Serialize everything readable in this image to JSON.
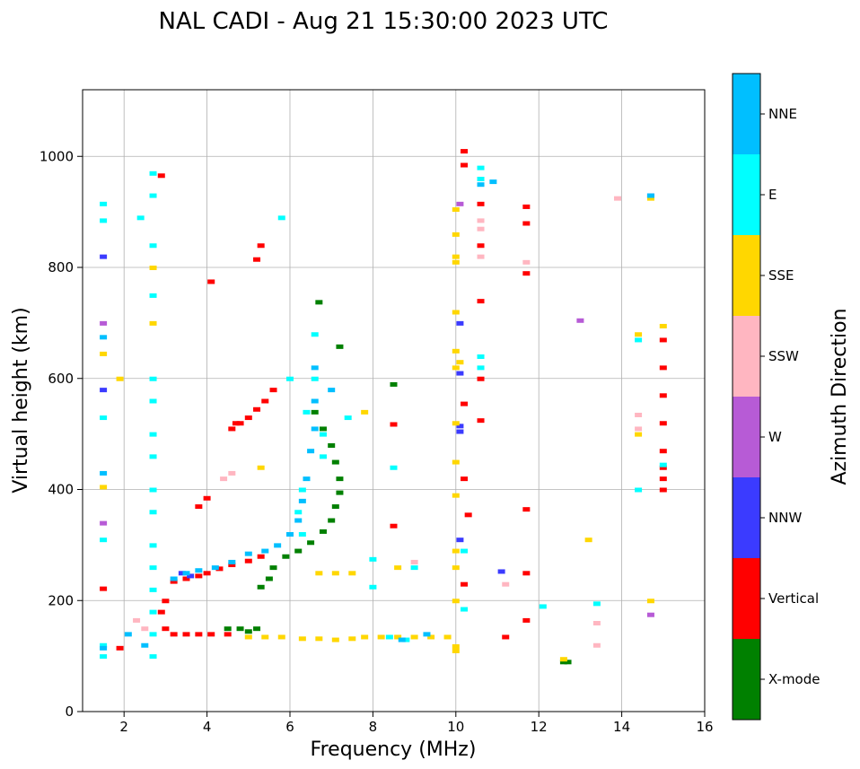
{
  "chart_data": {
    "type": "scatter",
    "title": "NAL CADI - Aug 21 15:30:00 2023 UTC",
    "xlabel": "Frequency (MHz)",
    "ylabel": "Virtual height (km)",
    "xlim": [
      1,
      16
    ],
    "ylim": [
      0,
      1120
    ],
    "xticks": [
      2,
      4,
      6,
      8,
      10,
      12,
      14,
      16
    ],
    "yticks": [
      0,
      200,
      400,
      600,
      800,
      1000
    ],
    "grid": true,
    "colorbar": {
      "label": "Azimuth Direction",
      "categories": [
        {
          "name": "X-mode",
          "color": "#008000"
        },
        {
          "name": "Vertical",
          "color": "#ff0000"
        },
        {
          "name": "NNW",
          "color": "#3b3bff"
        },
        {
          "name": "W",
          "color": "#b75bd6"
        },
        {
          "name": "SSW",
          "color": "#ffb6c1"
        },
        {
          "name": "SSE",
          "color": "#ffd700"
        },
        {
          "name": "E",
          "color": "#00ffff"
        },
        {
          "name": "NNE",
          "color": "#00bfff"
        }
      ]
    },
    "series": [
      {
        "name": "Vertical",
        "color": "#ff0000",
        "points": [
          [
            3.0,
            150
          ],
          [
            3.2,
            140
          ],
          [
            3.5,
            140
          ],
          [
            3.8,
            140
          ],
          [
            4.1,
            140
          ],
          [
            4.5,
            140
          ],
          [
            2.9,
            180
          ],
          [
            3.0,
            200
          ],
          [
            3.2,
            235
          ],
          [
            3.5,
            240
          ],
          [
            3.8,
            245
          ],
          [
            4.0,
            250
          ],
          [
            4.3,
            258
          ],
          [
            4.6,
            265
          ],
          [
            5.0,
            272
          ],
          [
            5.3,
            280
          ],
          [
            4.7,
            520
          ],
          [
            5.0,
            530
          ],
          [
            5.2,
            545
          ],
          [
            5.4,
            560
          ],
          [
            5.6,
            580
          ],
          [
            3.8,
            370
          ],
          [
            4.0,
            385
          ],
          [
            4.6,
            510
          ],
          [
            4.1,
            775
          ],
          [
            5.2,
            815
          ],
          [
            5.3,
            840
          ],
          [
            4.8,
            520
          ],
          [
            10.2,
            1010
          ],
          [
            10.2,
            985
          ],
          [
            10.6,
            915
          ],
          [
            10.6,
            840
          ],
          [
            10.6,
            740
          ],
          [
            10.6,
            600
          ],
          [
            10.6,
            525
          ],
          [
            10.2,
            555
          ],
          [
            10.2,
            420
          ],
          [
            10.3,
            355
          ],
          [
            10.2,
            230
          ],
          [
            11.7,
            910
          ],
          [
            11.7,
            880
          ],
          [
            11.7,
            790
          ],
          [
            11.7,
            365
          ],
          [
            11.7,
            250
          ],
          [
            11.7,
            165
          ],
          [
            8.5,
            335
          ],
          [
            8.5,
            518
          ],
          [
            1.5,
            222
          ],
          [
            1.9,
            115
          ],
          [
            15.0,
            420
          ],
          [
            15.0,
            470
          ],
          [
            15.0,
            520
          ],
          [
            15.0,
            570
          ],
          [
            15.0,
            620
          ],
          [
            15.0,
            670
          ],
          [
            15.0,
            440
          ],
          [
            15.0,
            400
          ],
          [
            2.9,
            966
          ],
          [
            11.2,
            135
          ]
        ]
      },
      {
        "name": "X-mode",
        "color": "#008000",
        "points": [
          [
            4.5,
            150
          ],
          [
            4.8,
            150
          ],
          [
            5.0,
            145
          ],
          [
            5.2,
            150
          ],
          [
            5.5,
            240
          ],
          [
            5.6,
            260
          ],
          [
            5.9,
            280
          ],
          [
            6.2,
            290
          ],
          [
            6.5,
            305
          ],
          [
            6.8,
            325
          ],
          [
            7.0,
            345
          ],
          [
            7.1,
            370
          ],
          [
            7.2,
            395
          ],
          [
            7.2,
            420
          ],
          [
            7.1,
            450
          ],
          [
            7.0,
            480
          ],
          [
            6.8,
            510
          ],
          [
            6.6,
            540
          ],
          [
            6.7,
            738
          ],
          [
            7.2,
            658
          ],
          [
            8.5,
            590
          ],
          [
            12.6,
            90
          ],
          [
            12.7,
            90
          ],
          [
            5.3,
            225
          ]
        ]
      },
      {
        "name": "NNW",
        "color": "#3b3bff",
        "points": [
          [
            3.4,
            250
          ],
          [
            3.6,
            245
          ],
          [
            10.1,
            700
          ],
          [
            10.1,
            610
          ],
          [
            10.1,
            515
          ],
          [
            10.1,
            505
          ],
          [
            10.1,
            310
          ],
          [
            11.1,
            253
          ],
          [
            14.7,
            930
          ],
          [
            1.5,
            820
          ],
          [
            1.5,
            580
          ]
        ]
      },
      {
        "name": "W",
        "color": "#b75bd6",
        "points": [
          [
            14.7,
            175
          ],
          [
            13.0,
            705
          ],
          [
            1.5,
            340
          ],
          [
            1.5,
            700
          ],
          [
            10.1,
            915
          ]
        ]
      },
      {
        "name": "SSW",
        "color": "#ffb6c1",
        "points": [
          [
            4.4,
            420
          ],
          [
            4.6,
            430
          ],
          [
            9.0,
            270
          ],
          [
            13.4,
            160
          ],
          [
            13.4,
            120
          ],
          [
            11.2,
            230
          ],
          [
            10.6,
            885
          ],
          [
            10.6,
            870
          ],
          [
            11.7,
            810
          ],
          [
            10.6,
            820
          ],
          [
            14.4,
            535
          ],
          [
            14.4,
            510
          ],
          [
            13.9,
            925
          ],
          [
            2.5,
            150
          ],
          [
            2.3,
            165
          ]
        ]
      },
      {
        "name": "SSE",
        "color": "#ffd700",
        "points": [
          [
            5.0,
            135
          ],
          [
            5.4,
            135
          ],
          [
            5.8,
            135
          ],
          [
            6.3,
            132
          ],
          [
            6.7,
            132
          ],
          [
            7.1,
            130
          ],
          [
            7.5,
            132
          ],
          [
            7.8,
            135
          ],
          [
            8.2,
            135
          ],
          [
            8.6,
            135
          ],
          [
            9.0,
            135
          ],
          [
            9.4,
            135
          ],
          [
            9.8,
            135
          ],
          [
            10.0,
            118
          ],
          [
            10.0,
            110
          ],
          [
            6.7,
            250
          ],
          [
            7.1,
            250
          ],
          [
            7.5,
            250
          ],
          [
            8.6,
            260
          ],
          [
            13.2,
            310
          ],
          [
            14.7,
            200
          ],
          [
            14.7,
            925
          ],
          [
            14.4,
            680
          ],
          [
            14.4,
            500
          ],
          [
            15.0,
            695
          ],
          [
            10.0,
            860
          ],
          [
            10.0,
            820
          ],
          [
            10.0,
            720
          ],
          [
            10.0,
            650
          ],
          [
            10.0,
            620
          ],
          [
            10.0,
            520
          ],
          [
            10.0,
            450
          ],
          [
            10.0,
            390
          ],
          [
            10.0,
            290
          ],
          [
            10.0,
            260
          ],
          [
            10.0,
            200
          ],
          [
            10.0,
            810
          ],
          [
            10.0,
            905
          ],
          [
            7.8,
            540
          ],
          [
            1.5,
            645
          ],
          [
            1.5,
            405
          ],
          [
            1.9,
            600
          ],
          [
            2.7,
            800
          ],
          [
            2.7,
            700
          ],
          [
            12.6,
            95
          ],
          [
            5.3,
            440
          ],
          [
            10.1,
            630
          ]
        ]
      },
      {
        "name": "E",
        "color": "#00ffff",
        "points": [
          [
            2.7,
            970
          ],
          [
            2.7,
            930
          ],
          [
            2.7,
            840
          ],
          [
            2.7,
            750
          ],
          [
            2.7,
            600
          ],
          [
            2.7,
            560
          ],
          [
            2.7,
            500
          ],
          [
            2.7,
            460
          ],
          [
            2.7,
            400
          ],
          [
            2.7,
            360
          ],
          [
            2.7,
            300
          ],
          [
            2.7,
            260
          ],
          [
            2.7,
            220
          ],
          [
            2.7,
            180
          ],
          [
            2.7,
            140
          ],
          [
            2.7,
            100
          ],
          [
            6.6,
            680
          ],
          [
            6.6,
            600
          ],
          [
            6.4,
            540
          ],
          [
            6.8,
            500
          ],
          [
            6.8,
            460
          ],
          [
            6.3,
            400
          ],
          [
            6.2,
            360
          ],
          [
            6.3,
            320
          ],
          [
            10.6,
            980
          ],
          [
            10.6,
            960
          ],
          [
            10.6,
            640
          ],
          [
            10.6,
            620
          ],
          [
            10.2,
            290
          ],
          [
            10.2,
            185
          ],
          [
            12.1,
            190
          ],
          [
            13.4,
            195
          ],
          [
            8.4,
            135
          ],
          [
            8.8,
            130
          ],
          [
            8.5,
            440
          ],
          [
            7.4,
            530
          ],
          [
            6.0,
            600
          ],
          [
            5.8,
            890
          ],
          [
            1.5,
            915
          ],
          [
            1.5,
            885
          ],
          [
            1.5,
            530
          ],
          [
            1.5,
            310
          ],
          [
            1.5,
            120
          ],
          [
            1.5,
            100
          ],
          [
            14.4,
            670
          ],
          [
            15.0,
            445
          ],
          [
            14.4,
            400
          ],
          [
            2.4,
            890
          ],
          [
            9.0,
            260
          ],
          [
            8.0,
            225
          ],
          [
            8.0,
            275
          ]
        ]
      },
      {
        "name": "NNE",
        "color": "#00bfff",
        "points": [
          [
            3.2,
            240
          ],
          [
            3.5,
            250
          ],
          [
            3.8,
            255
          ],
          [
            4.2,
            260
          ],
          [
            4.6,
            270
          ],
          [
            5.0,
            285
          ],
          [
            5.4,
            290
          ],
          [
            5.7,
            300
          ],
          [
            6.0,
            320
          ],
          [
            6.2,
            345
          ],
          [
            6.3,
            380
          ],
          [
            6.4,
            420
          ],
          [
            6.5,
            470
          ],
          [
            6.6,
            510
          ],
          [
            6.6,
            560
          ],
          [
            6.6,
            620
          ],
          [
            7.0,
            580
          ],
          [
            10.6,
            950
          ],
          [
            10.9,
            955
          ],
          [
            1.5,
            430
          ],
          [
            1.5,
            675
          ],
          [
            1.5,
            115
          ],
          [
            2.1,
            140
          ],
          [
            2.5,
            120
          ],
          [
            9.3,
            140
          ],
          [
            8.7,
            130
          ],
          [
            14.7,
            930
          ]
        ]
      }
    ]
  }
}
